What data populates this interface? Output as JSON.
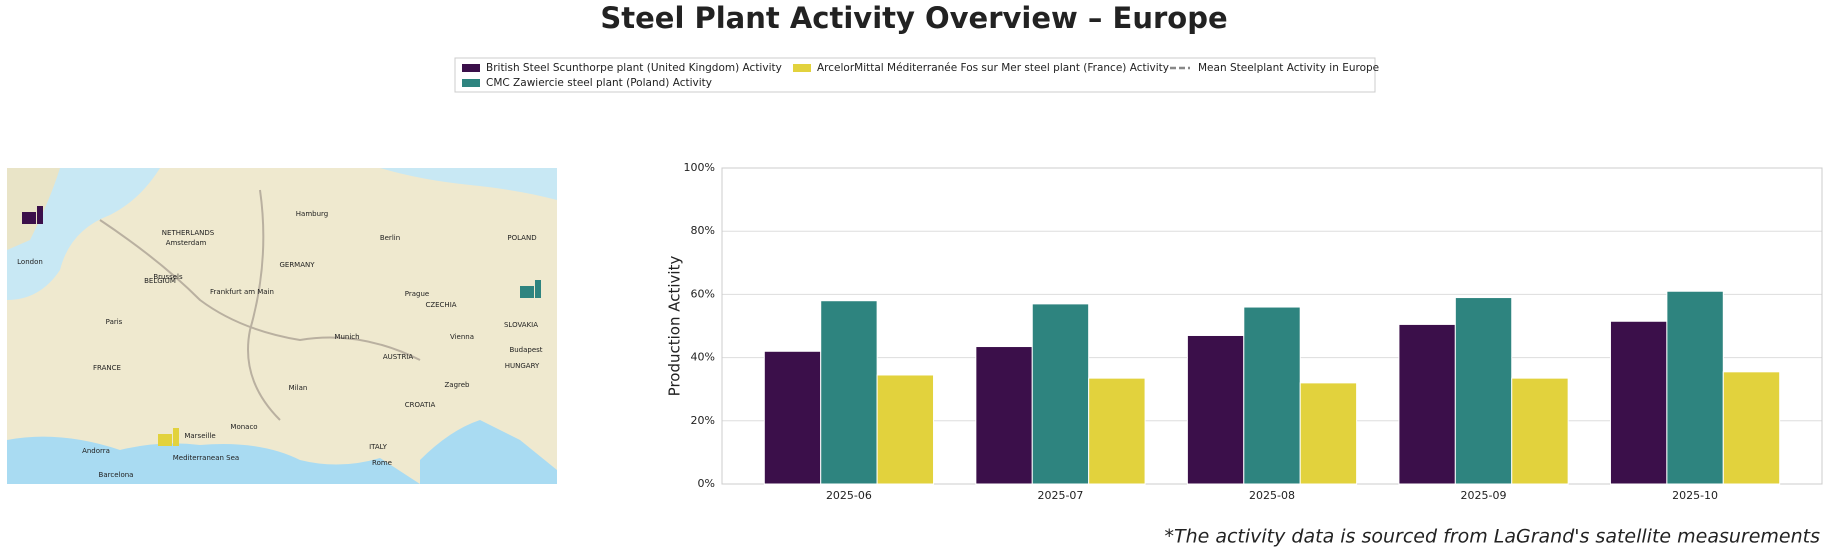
{
  "chart_data": {
    "type": "bar",
    "title": "Steel Plant Activity Overview – Europe",
    "ylabel": "Production Activity",
    "footnote": "*The activity data is sourced from LaGrand's satellite measurements",
    "categories": [
      "2025-06",
      "2025-07",
      "2025-08",
      "2025-09",
      "2025-10"
    ],
    "series": [
      {
        "name": "British Steel Scunthorpe plant (United Kingdom) Activity",
        "color": "#3b0f4a",
        "values": [
          42,
          43.5,
          47,
          50.5,
          51.5
        ]
      },
      {
        "name": "CMC Zawiercie steel plant (Poland) Activity",
        "color": "#2e847f",
        "values": [
          58,
          57,
          56,
          59,
          61
        ]
      },
      {
        "name": "ArcelorMittal Méditerranée Fos sur Mer steel plant (France) Activity",
        "color": "#e2d23d",
        "values": [
          34.5,
          33.5,
          32,
          33.5,
          35.5
        ]
      }
    ],
    "mean_line": {
      "name": "Mean Steelplant Activity in Europe",
      "color": "#888888"
    },
    "ylim": [
      0,
      100
    ],
    "yticks": [
      {
        "value": 0,
        "label": "0%"
      },
      {
        "value": 20,
        "label": "20%"
      },
      {
        "value": 40,
        "label": "40%"
      },
      {
        "value": 60,
        "label": "60%"
      },
      {
        "value": 80,
        "label": "80%"
      },
      {
        "value": 100,
        "label": "100%"
      }
    ],
    "grid": true
  },
  "map": {
    "labels": [
      "London",
      "Paris",
      "FRANCE",
      "GERMANY",
      "NETHERLANDS",
      "BELGIUM",
      "POLAND",
      "CZECHIA",
      "SLOVAKIA",
      "AUSTRIA",
      "HUNGARY",
      "CROATIA",
      "ITALY",
      "Amsterdam",
      "Brussels",
      "Hamburg",
      "Berlin",
      "Frankfurt am Main",
      "Munich",
      "Prague",
      "Vienna",
      "Budapest",
      "Zagreb",
      "Milan",
      "Monaco",
      "Marseille",
      "Andorra",
      "Barcelona",
      "Rome",
      "Mediterranean Sea"
    ]
  }
}
